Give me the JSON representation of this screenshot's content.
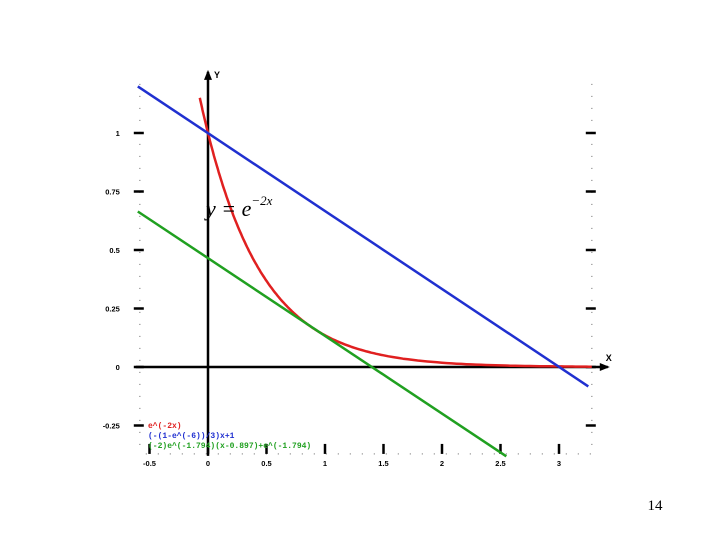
{
  "chart_data": {
    "type": "line",
    "title": "",
    "xlabel": "X",
    "ylabel": "Y",
    "xlim": [
      -0.6,
      3.4
    ],
    "ylim": [
      -0.38,
      1.27
    ],
    "x_ticks": [
      -0.5,
      0,
      0.5,
      1,
      1.5,
      2,
      2.5,
      3
    ],
    "x_tick_labels": [
      "-0.5",
      "0",
      "0.5",
      "1",
      "1.5",
      "2",
      "2.5",
      "3"
    ],
    "y_ticks": [
      -0.25,
      0,
      0.25,
      0.5,
      0.75,
      1
    ],
    "y_tick_labels": [
      "-0.25",
      "0",
      "0.25",
      "0.5",
      "0.75",
      "1"
    ],
    "grid": false,
    "legend_position": "bottom-left",
    "series": [
      {
        "name": "e^(-2x)",
        "color": "#e02020",
        "kind": "curve",
        "x": [
          -0.07,
          0,
          0.1,
          0.2,
          0.3,
          0.4,
          0.5,
          0.6,
          0.75,
          0.897,
          1.0,
          1.25,
          1.5,
          2.0,
          2.5,
          3.0,
          3.28
        ],
        "y": [
          1.15,
          1.0,
          0.819,
          0.67,
          0.549,
          0.449,
          0.368,
          0.301,
          0.223,
          0.166,
          0.135,
          0.082,
          0.05,
          0.018,
          0.007,
          0.002,
          0.001
        ]
      },
      {
        "name": "(-(1-e^(-6))/3)x+1",
        "color": "#2030d0",
        "kind": "line",
        "x": [
          -0.6,
          3.25
        ],
        "y": [
          1.1992,
          -0.0829
        ]
      },
      {
        "name": "(-2)e^(-1.794)(x-0.897)+e^(-1.794)",
        "color": "#20a020",
        "kind": "line",
        "x": [
          -0.6,
          2.55
        ],
        "y": [
          0.6647,
          -0.3815
        ]
      }
    ],
    "annotations": [
      {
        "text_main": "y = e",
        "text_sup": "−2x"
      }
    ]
  },
  "page": {
    "number": "14"
  }
}
